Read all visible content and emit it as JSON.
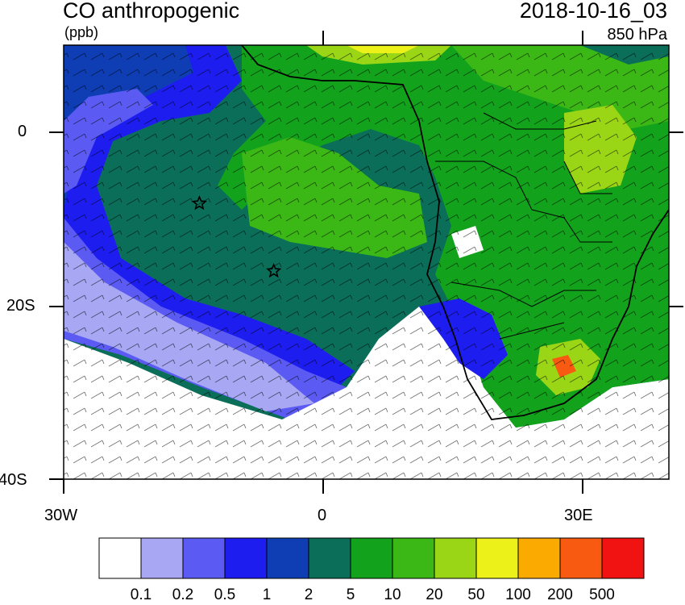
{
  "header": {
    "field_name": "CO anthropogenic",
    "units": "(ppb)",
    "datetime": "2018-10-16_03",
    "level": "850 hPa"
  },
  "axes": {
    "lat_labels": [
      "0",
      "20S",
      "40S"
    ],
    "lon_labels": [
      "30W",
      "0",
      "30E"
    ]
  },
  "markers": [
    {
      "name": "star-marker-1",
      "lon": -14.3,
      "lat": -8.2
    },
    {
      "name": "star-marker-2",
      "lon": -5.7,
      "lat": -16.0
    }
  ],
  "colorbar": {
    "colors": [
      "#ffffff",
      "#a7a7f4",
      "#5b5bf3",
      "#1d1df0",
      "#0f3eb4",
      "#0a6e58",
      "#13a21c",
      "#3cb816",
      "#9bd616",
      "#ecf11a",
      "#fbaa02",
      "#f85a12",
      "#f11212"
    ],
    "labels": [
      "0.1",
      "0.2",
      "0.5",
      "1",
      "2",
      "5",
      "10",
      "20",
      "50",
      "100",
      "200",
      "500"
    ]
  }
}
